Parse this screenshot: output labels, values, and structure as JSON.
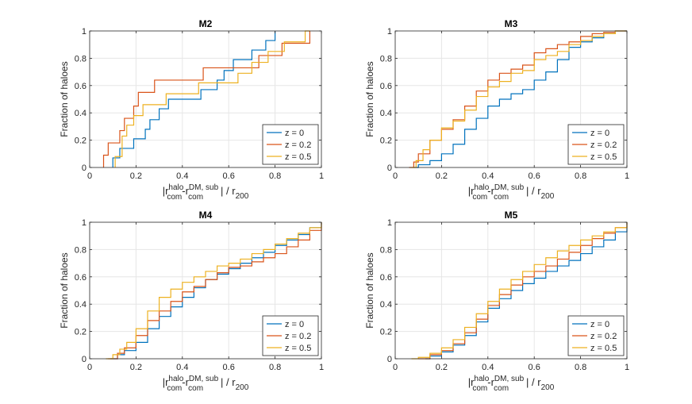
{
  "colors": {
    "z0": "#0072BD",
    "z02": "#D95319",
    "z05": "#EDB120",
    "grid": "#e6e6e6",
    "axis": "#262626"
  },
  "chart_data": [
    {
      "type": "line",
      "title": "M2",
      "ylabel": "Fraction of haloes",
      "xlabel": {
        "prefix": "|r",
        "sup1": "halo",
        "sub1": "com",
        "mid": "-r",
        "sup2": "DM, sub",
        "sub2": "com",
        "suffix": "| / r",
        "sub3": "200"
      },
      "xlim": [
        0,
        1
      ],
      "ylim": [
        0,
        1
      ],
      "xticks": [
        "0",
        "0.2",
        "0.4",
        "0.6",
        "0.8",
        "1"
      ],
      "yticks": [
        "0",
        "0.2",
        "0.4",
        "0.6",
        "0.8",
        "1"
      ],
      "grid": true,
      "legend_position": "bottom-right",
      "series": [
        {
          "name": "z = 0",
          "color_key": "z0",
          "x": [
            0.1,
            0.1,
            0.13,
            0.19,
            0.22,
            0.24,
            0.26,
            0.3,
            0.34,
            0.43,
            0.45,
            0.48,
            0.52,
            0.55,
            0.58,
            0.62,
            0.66,
            0.7,
            0.73,
            0.76,
            0.78,
            0.8,
            0.8
          ],
          "y": [
            0,
            0.07,
            0.14,
            0.21,
            0.21,
            0.28,
            0.35,
            0.43,
            0.5,
            0.5,
            0.5,
            0.57,
            0.57,
            0.64,
            0.71,
            0.79,
            0.79,
            0.86,
            0.86,
            0.93,
            0.93,
            1.0,
            1.0
          ]
        },
        {
          "name": "z = 0.2",
          "color_key": "z02",
          "x": [
            0.06,
            0.06,
            0.08,
            0.13,
            0.15,
            0.19,
            0.21,
            0.24,
            0.28,
            0.33,
            0.37,
            0.43,
            0.49,
            0.57,
            0.62,
            0.68,
            0.73,
            0.83,
            0.89,
            0.93,
            0.95,
            0.95
          ],
          "y": [
            0,
            0.09,
            0.18,
            0.27,
            0.36,
            0.45,
            0.55,
            0.55,
            0.64,
            0.64,
            0.64,
            0.64,
            0.73,
            0.73,
            0.73,
            0.73,
            0.82,
            0.91,
            0.91,
            0.91,
            1.0,
            1.0
          ]
        },
        {
          "name": "z = 0.5",
          "color_key": "z05",
          "x": [
            0.11,
            0.11,
            0.14,
            0.16,
            0.19,
            0.21,
            0.23,
            0.26,
            0.33,
            0.38,
            0.47,
            0.54,
            0.58,
            0.64,
            0.7,
            0.77,
            0.84,
            0.88,
            0.93,
            0.95
          ],
          "y": [
            0,
            0.08,
            0.23,
            0.31,
            0.38,
            0.38,
            0.46,
            0.46,
            0.54,
            0.54,
            0.62,
            0.62,
            0.62,
            0.69,
            0.77,
            0.85,
            0.92,
            0.92,
            1.0,
            1.0
          ]
        }
      ]
    },
    {
      "type": "line",
      "title": "M3",
      "ylabel": "Fraction of haloes",
      "xlabel": {
        "prefix": "|r",
        "sup1": "halo",
        "sub1": "com",
        "mid": "-r",
        "sup2": "DM, sub",
        "sub2": "com",
        "suffix": "| / r",
        "sub3": "200"
      },
      "xlim": [
        0,
        1
      ],
      "ylim": [
        0,
        1
      ],
      "xticks": [
        "0",
        "0.2",
        "0.4",
        "0.6",
        "0.8",
        "1"
      ],
      "yticks": [
        "0",
        "0.2",
        "0.4",
        "0.6",
        "0.8",
        "1"
      ],
      "grid": true,
      "legend_position": "bottom-right",
      "series": [
        {
          "name": "z = 0",
          "color_key": "z0",
          "x": [
            0.08,
            0.1,
            0.15,
            0.2,
            0.25,
            0.3,
            0.35,
            0.4,
            0.45,
            0.5,
            0.55,
            0.6,
            0.65,
            0.7,
            0.75,
            0.8,
            0.85,
            0.9,
            0.95,
            1.0
          ],
          "y": [
            0,
            0.02,
            0.05,
            0.1,
            0.17,
            0.28,
            0.36,
            0.45,
            0.5,
            0.54,
            0.57,
            0.64,
            0.7,
            0.79,
            0.88,
            0.92,
            0.95,
            0.98,
            1.0,
            1.0
          ]
        },
        {
          "name": "z = 0.2",
          "color_key": "z02",
          "x": [
            0.06,
            0.08,
            0.1,
            0.15,
            0.2,
            0.25,
            0.3,
            0.35,
            0.4,
            0.45,
            0.5,
            0.55,
            0.6,
            0.65,
            0.7,
            0.75,
            0.8,
            0.85,
            0.9,
            0.95,
            1.0
          ],
          "y": [
            0,
            0.04,
            0.1,
            0.2,
            0.28,
            0.35,
            0.45,
            0.56,
            0.64,
            0.69,
            0.72,
            0.75,
            0.84,
            0.87,
            0.9,
            0.92,
            0.96,
            0.98,
            0.99,
            1.0,
            1.0
          ]
        },
        {
          "name": "z = 0.5",
          "color_key": "z05",
          "x": [
            0.07,
            0.09,
            0.12,
            0.15,
            0.2,
            0.25,
            0.3,
            0.35,
            0.4,
            0.45,
            0.5,
            0.55,
            0.6,
            0.65,
            0.7,
            0.75,
            0.8,
            0.85,
            0.9,
            0.95,
            1.0
          ],
          "y": [
            0,
            0.05,
            0.13,
            0.2,
            0.29,
            0.34,
            0.42,
            0.52,
            0.59,
            0.63,
            0.69,
            0.71,
            0.79,
            0.82,
            0.85,
            0.9,
            0.93,
            0.96,
            0.98,
            1.0,
            1.0
          ]
        }
      ]
    },
    {
      "type": "line",
      "title": "M4",
      "ylabel": "Fraction of haloes",
      "xlabel": {
        "prefix": "|r",
        "sup1": "halo",
        "sub1": "com",
        "mid": "-r",
        "sup2": "DM, sub",
        "sub2": "com",
        "suffix": "| / r",
        "sub3": "200"
      },
      "xlim": [
        0,
        1
      ],
      "ylim": [
        0,
        1
      ],
      "xticks": [
        "0",
        "0.2",
        "0.4",
        "0.6",
        "0.8",
        "1"
      ],
      "yticks": [
        "0",
        "0.2",
        "0.4",
        "0.6",
        "0.8",
        "1"
      ],
      "grid": true,
      "legend_position": "bottom-right",
      "series": [
        {
          "name": "z = 0",
          "color_key": "z0",
          "x": [
            0.09,
            0.12,
            0.15,
            0.2,
            0.25,
            0.3,
            0.35,
            0.4,
            0.45,
            0.5,
            0.55,
            0.6,
            0.65,
            0.7,
            0.75,
            0.8,
            0.85,
            0.9,
            0.95,
            1.0
          ],
          "y": [
            0,
            0.03,
            0.06,
            0.12,
            0.22,
            0.31,
            0.38,
            0.45,
            0.52,
            0.58,
            0.62,
            0.66,
            0.7,
            0.74,
            0.78,
            0.83,
            0.87,
            0.91,
            0.96,
            1.0
          ]
        },
        {
          "name": "z = 0.2",
          "color_key": "z02",
          "x": [
            0.08,
            0.12,
            0.15,
            0.2,
            0.25,
            0.3,
            0.35,
            0.4,
            0.45,
            0.5,
            0.55,
            0.6,
            0.65,
            0.7,
            0.75,
            0.8,
            0.85,
            0.9,
            0.95,
            1.0
          ],
          "y": [
            0,
            0.04,
            0.08,
            0.17,
            0.28,
            0.35,
            0.42,
            0.49,
            0.53,
            0.58,
            0.63,
            0.67,
            0.68,
            0.71,
            0.74,
            0.77,
            0.82,
            0.87,
            0.94,
            1.0
          ]
        },
        {
          "name": "z = 0.5",
          "color_key": "z05",
          "x": [
            0.07,
            0.1,
            0.13,
            0.16,
            0.2,
            0.25,
            0.3,
            0.35,
            0.4,
            0.45,
            0.5,
            0.55,
            0.6,
            0.65,
            0.7,
            0.75,
            0.8,
            0.85,
            0.9,
            0.95,
            1.0
          ],
          "y": [
            0,
            0.03,
            0.07,
            0.12,
            0.22,
            0.35,
            0.45,
            0.51,
            0.56,
            0.6,
            0.64,
            0.68,
            0.7,
            0.73,
            0.77,
            0.8,
            0.84,
            0.88,
            0.92,
            0.96,
            1.0
          ]
        }
      ]
    },
    {
      "type": "line",
      "title": "M5",
      "ylabel": "Fraction of haloes",
      "xlabel": {
        "prefix": "|r",
        "sup1": "halo",
        "sub1": "com",
        "mid": "-r",
        "sup2": "DM, sub",
        "sub2": "com",
        "suffix": "| / r",
        "sub3": "200"
      },
      "xlim": [
        0,
        1
      ],
      "ylim": [
        0,
        1
      ],
      "xticks": [
        "0",
        "0.2",
        "0.4",
        "0.6",
        "0.8",
        "1"
      ],
      "yticks": [
        "0",
        "0.2",
        "0.4",
        "0.6",
        "0.8",
        "1"
      ],
      "grid": true,
      "legend_position": "bottom-right",
      "series": [
        {
          "name": "z = 0",
          "color_key": "z0",
          "x": [
            0.13,
            0.15,
            0.2,
            0.25,
            0.3,
            0.35,
            0.4,
            0.45,
            0.5,
            0.55,
            0.6,
            0.65,
            0.7,
            0.75,
            0.8,
            0.85,
            0.9,
            0.95,
            1.0
          ],
          "y": [
            0,
            0.02,
            0.05,
            0.1,
            0.17,
            0.27,
            0.37,
            0.44,
            0.5,
            0.55,
            0.59,
            0.64,
            0.68,
            0.72,
            0.77,
            0.82,
            0.87,
            0.93,
            1.0
          ]
        },
        {
          "name": "z = 0.2",
          "color_key": "z02",
          "x": [
            0.1,
            0.15,
            0.2,
            0.25,
            0.3,
            0.35,
            0.4,
            0.45,
            0.5,
            0.55,
            0.6,
            0.65,
            0.7,
            0.75,
            0.8,
            0.85,
            0.9,
            0.95,
            1.0
          ],
          "y": [
            0,
            0.03,
            0.06,
            0.11,
            0.19,
            0.29,
            0.39,
            0.47,
            0.54,
            0.6,
            0.64,
            0.68,
            0.73,
            0.78,
            0.83,
            0.88,
            0.92,
            0.96,
            1.0
          ]
        },
        {
          "name": "z = 0.5",
          "color_key": "z05",
          "x": [
            0.07,
            0.1,
            0.15,
            0.2,
            0.25,
            0.3,
            0.35,
            0.4,
            0.45,
            0.5,
            0.55,
            0.6,
            0.65,
            0.7,
            0.75,
            0.8,
            0.85,
            0.9,
            0.95,
            1.0
          ],
          "y": [
            0,
            0.01,
            0.04,
            0.08,
            0.14,
            0.23,
            0.33,
            0.42,
            0.51,
            0.58,
            0.64,
            0.69,
            0.74,
            0.79,
            0.83,
            0.87,
            0.9,
            0.93,
            0.96,
            1.0
          ]
        }
      ]
    }
  ]
}
